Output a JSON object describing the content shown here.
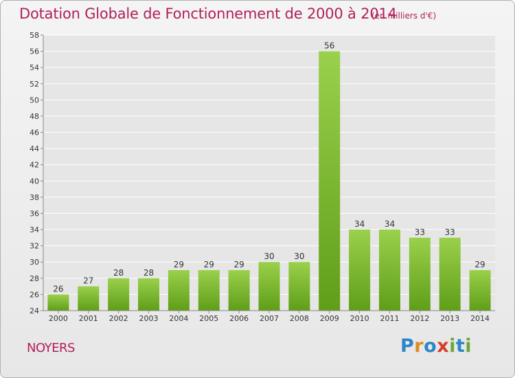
{
  "chart_data": {
    "type": "bar",
    "title": "Dotation Globale de Fonctionnement de 2000 à 2014",
    "unit_note": "(en milliers d'€)",
    "categories": [
      "2000",
      "2001",
      "2002",
      "2003",
      "2004",
      "2005",
      "2006",
      "2007",
      "2008",
      "2009",
      "2010",
      "2011",
      "2012",
      "2013",
      "2014"
    ],
    "values": [
      26,
      27,
      28,
      28,
      29,
      29,
      29,
      30,
      30,
      56,
      34,
      34,
      33,
      33,
      29
    ],
    "ylim": [
      24,
      58
    ],
    "yticks": [
      "24",
      "26",
      "28",
      "30",
      "32",
      "34",
      "36",
      "38",
      "40",
      "42",
      "44",
      "46",
      "48",
      "50",
      "52",
      "54",
      "56",
      "58"
    ],
    "grid": true,
    "bar_color": "#7dbb2e"
  },
  "location": "NOYERS",
  "logo": {
    "p": "P",
    "r": "r",
    "o": "o",
    "x": "x",
    "i1": "i",
    "t": "t",
    "i2": "i"
  }
}
